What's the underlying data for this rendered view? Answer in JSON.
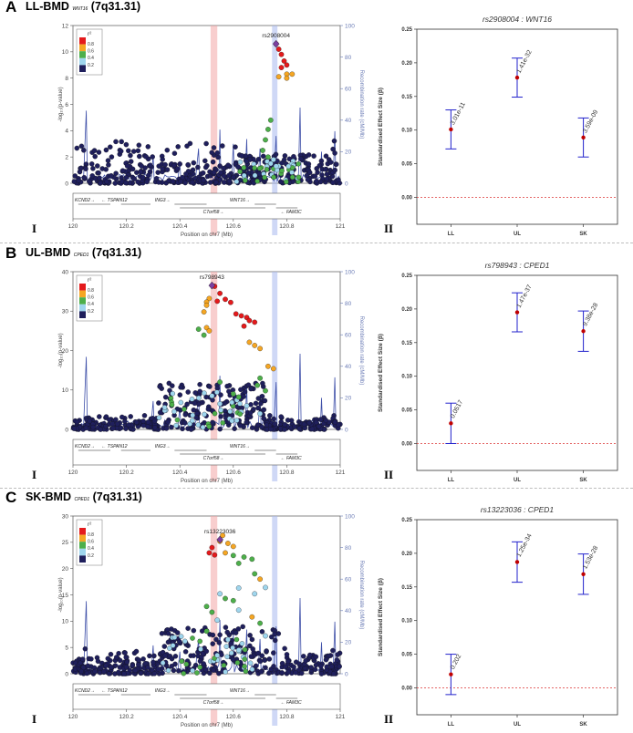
{
  "panels": [
    {
      "letter": "A",
      "title_prefix": "LL-BMD ",
      "gene": "WNT16",
      "title_suffix": " (7q31.31)",
      "roman_left": "I",
      "roman_right": "II",
      "locus": {
        "lead_snp": "rs2908004",
        "ylim": [
          0,
          12
        ],
        "yticks": [
          0,
          2,
          4,
          6,
          8,
          10,
          12
        ],
        "rate_ylim": [
          0,
          100
        ],
        "rate_ticks": [
          0,
          20,
          40,
          60,
          80,
          100
        ],
        "xlabel": "Position on chr7 (Mb)",
        "ylabel": "-log₁₀(p-value)",
        "rlabel": "Recombination rate (cM/Mb)",
        "xticks": [
          "120",
          "120.2",
          "120.4",
          "120.6",
          "120.8",
          "121"
        ],
        "legend_title": "r²",
        "legend_ticks": [
          "0.8",
          "0.6",
          "0.4",
          "0.2"
        ]
      },
      "effect": {
        "title": "rs2908004 : WNT16",
        "categories": [
          "LL",
          "UL",
          "SK"
        ],
        "ylabel": "Standardised Effect Size (β)",
        "ylim": [
          -0.04,
          0.25
        ],
        "yticks": [
          "0.25",
          "0.20",
          "0.15",
          "0.10",
          "0.05",
          "0.00"
        ],
        "beta": [
          0.101,
          0.178,
          0.089
        ],
        "lower": [
          0.072,
          0.149,
          0.06
        ],
        "upper": [
          0.13,
          0.207,
          0.118
        ],
        "pvalues": [
          "3.01e-11",
          "1.41e-32",
          "3.59e-09"
        ]
      }
    },
    {
      "letter": "B",
      "title_prefix": "UL-BMD ",
      "gene": "CPED1",
      "title_suffix": " (7q31.31)",
      "roman_left": "I",
      "roman_right": "II",
      "locus": {
        "lead_snp": "rs798943",
        "ylim": [
          0,
          40
        ],
        "yticks": [
          0,
          10,
          20,
          30,
          40
        ],
        "rate_ylim": [
          0,
          100
        ],
        "rate_ticks": [
          0,
          20,
          40,
          60,
          80,
          100
        ],
        "xlabel": "Position on chr7 (Mb)",
        "ylabel": "-log₁₀(p-value)",
        "rlabel": "Recombination rate (cM/Mb)",
        "xticks": [
          "120",
          "120.2",
          "120.4",
          "120.6",
          "120.8",
          "121"
        ],
        "legend_title": "r²",
        "legend_ticks": [
          "0.8",
          "0.6",
          "0.4",
          "0.2"
        ]
      },
      "effect": {
        "title": "rs798943 : CPED1",
        "categories": [
          "LL",
          "UL",
          "SK"
        ],
        "ylabel": "Standardised Effect Size (β)",
        "ylim": [
          -0.04,
          0.25
        ],
        "yticks": [
          "0.25",
          "0.20",
          "0.15",
          "0.10",
          "0.05",
          "0.00"
        ],
        "beta": [
          0.03,
          0.195,
          0.167
        ],
        "lower": [
          0.0,
          0.166,
          0.137
        ],
        "upper": [
          0.06,
          0.224,
          0.197
        ],
        "pvalues": [
          "0.0517",
          "1.47e-37",
          "9.38e-28"
        ]
      }
    },
    {
      "letter": "C",
      "title_prefix": "SK-BMD ",
      "gene": "CPED1",
      "title_suffix": " (7q31.31)",
      "roman_left": "I",
      "roman_right": "II",
      "locus": {
        "lead_snp": "rs13223036",
        "ylim": [
          0,
          30
        ],
        "yticks": [
          0,
          5,
          10,
          15,
          20,
          25,
          30
        ],
        "rate_ylim": [
          0,
          100
        ],
        "rate_ticks": [
          0,
          20,
          40,
          60,
          80,
          100
        ],
        "xlabel": "Position on chr7 (Mb)",
        "ylabel": "-log₁₀(p-value)",
        "rlabel": "Recombination rate (cM/Mb)",
        "xticks": [
          "120",
          "120.2",
          "120.4",
          "120.6",
          "120.8",
          "121"
        ],
        "legend_title": "r²",
        "legend_ticks": [
          "0.8",
          "0.6",
          "0.4",
          "0.2"
        ]
      },
      "effect": {
        "title": "rs13223036 : CPED1",
        "categories": [
          "LL",
          "UL",
          "SK"
        ],
        "ylabel": "Standardised Effect Size (β)",
        "ylim": [
          -0.04,
          0.25
        ],
        "yticks": [
          "0.25",
          "0.20",
          "0.15",
          "0.10",
          "0.05",
          "0.00"
        ],
        "beta": [
          0.02,
          0.187,
          0.169
        ],
        "lower": [
          -0.01,
          0.157,
          0.139
        ],
        "upper": [
          0.05,
          0.217,
          0.199
        ],
        "pvalues": [
          "0.202",
          "1.25e-34",
          "1.53e-28"
        ]
      }
    }
  ],
  "genes_row1": [
    "KCND2→",
    "← TSPAN12",
    "ING3→",
    "WNT16→"
  ],
  "genes_row2": [
    "C7orf58→",
    "← FAM3C"
  ],
  "colors": {
    "r2_08": "#e41a1c",
    "r2_06": "#f5a623",
    "r2_04": "#4daf4a",
    "r2_02": "#9fd6ee",
    "r2_00": "#1f1f5c",
    "rate": "#3e4fa8",
    "marker": "#c00000",
    "ci": "#2222cc"
  }
}
